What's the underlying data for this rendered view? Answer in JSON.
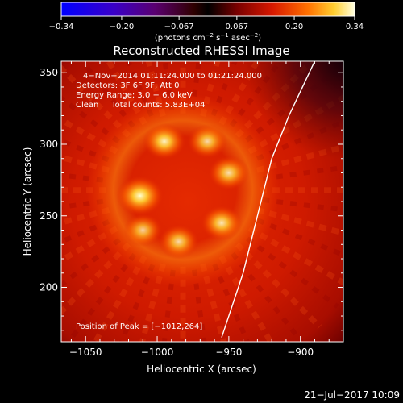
{
  "chart_data": {
    "type": "heatmap",
    "title": "Reconstructed RHESSI Image",
    "xlabel": "Heliocentric X (arcsec)",
    "ylabel": "Heliocentric Y (arcsec)",
    "xlim": [
      -1067,
      -870
    ],
    "ylim": [
      162,
      358
    ],
    "xticks": [
      -1050,
      -1000,
      -950,
      -900
    ],
    "yticks": [
      200,
      250,
      300,
      350
    ],
    "colorbar": {
      "ticks": [
        -0.34,
        -0.2,
        -0.067,
        0.067,
        0.2,
        0.34
      ],
      "tick_labels": [
        "−0.34",
        "−0.20",
        "−0.067",
        "0.067",
        "0.20",
        "0.34"
      ],
      "range": [
        -0.34,
        0.34
      ],
      "label_main": "(photons cm",
      "label_exp1": "−2",
      "label_mid": " s",
      "label_exp2": "−1",
      "label_mid2": " asec",
      "label_exp3": "−2",
      "label_end": ")"
    },
    "annotations": [
      "4−Nov−2014 01:11:24.000 to 01:21:24.000",
      "Detectors: 3F 6F 9F, Att 0",
      "Energy Range: 3.0 − 6.0 keV",
      "Clean     Total counts: 5.83E+04"
    ],
    "peak_label": "Position of Peak = [−1012,264]",
    "peak": [
      -1012,
      264
    ],
    "limb_curve": [
      [
        -955,
        165
      ],
      [
        -940,
        210
      ],
      [
        -930,
        250
      ],
      [
        -920,
        290
      ],
      [
        -908,
        320
      ],
      [
        -890,
        358
      ]
    ],
    "sources": [
      {
        "x": -1012,
        "y": 264,
        "value": 0.34
      },
      {
        "x": -995,
        "y": 302,
        "value": 0.27
      },
      {
        "x": -965,
        "y": 302,
        "value": 0.23
      },
      {
        "x": -950,
        "y": 280,
        "value": 0.24
      },
      {
        "x": -955,
        "y": 245,
        "value": 0.25
      },
      {
        "x": -985,
        "y": 232,
        "value": 0.23
      },
      {
        "x": -1010,
        "y": 240,
        "value": 0.21
      }
    ]
  },
  "footer": {
    "timestamp": "21−Jul−2017 10:09"
  }
}
